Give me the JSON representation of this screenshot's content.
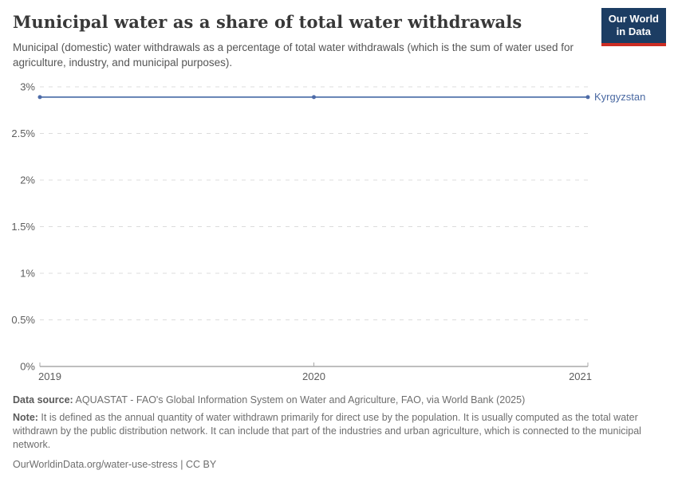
{
  "logo": {
    "line1": "Our World",
    "line2": "in Data",
    "bg_color": "#1c3d63",
    "stripe_color": "#cc2d23"
  },
  "chart_data": {
    "type": "line",
    "title": "Municipal water as a share of total water withdrawals",
    "subtitle": "Municipal (domestic) water withdrawals as a percentage of total water withdrawals (which is the sum of water used for agriculture, industry, and municipal purposes).",
    "xlabel": "",
    "ylabel": "",
    "xlim": [
      2019,
      2021
    ],
    "ylim": [
      0,
      3
    ],
    "x_ticks": [
      2019,
      2020,
      2021
    ],
    "x_tick_labels": [
      "2019",
      "2020",
      "2021"
    ],
    "y_tick_values": [
      0,
      0.5,
      1,
      1.5,
      2,
      2.5,
      3
    ],
    "y_tick_labels": [
      "0%",
      "0.5%",
      "1%",
      "1.5%",
      "2%",
      "2.5%",
      "3%"
    ],
    "grid": "horizontal-dashed",
    "legend_position": "line-end-label",
    "series": [
      {
        "name": "Kyrgyzstan",
        "x": [
          2019,
          2020,
          2021
        ],
        "values": [
          2.89,
          2.89,
          2.89
        ],
        "color": "#6280b3",
        "marker_color": "#4d6ba8",
        "label_color": "#4a69a2"
      }
    ]
  },
  "footer": {
    "data_source_label": "Data source:",
    "data_source": " AQUASTAT - FAO's Global Information System on Water and Agriculture, FAO, via World Bank (2025)",
    "note_label": "Note:",
    "note": " It is defined as the annual quantity of water withdrawn primarily for direct use by the population. It is usually computed as the total water withdrawn by the public distribution network. It can include that part of the industries and urban agriculture, which is connected to the municipal network.",
    "url": "OurWorldinData.org/water-use-stress",
    "separator": " | ",
    "license": "CC BY"
  }
}
